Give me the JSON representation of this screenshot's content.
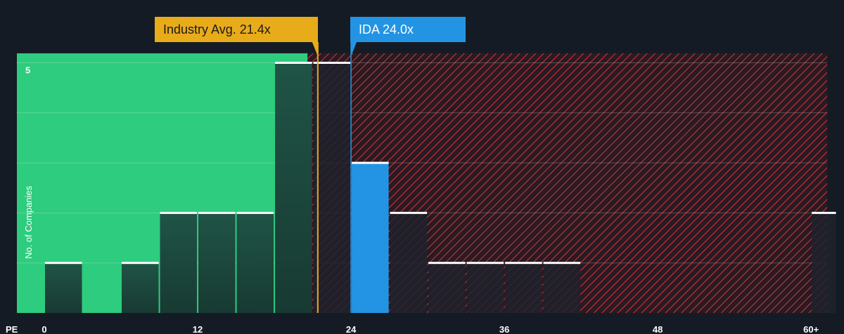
{
  "chart_data": {
    "type": "bar",
    "xlabel": "PE",
    "ylabel": "No. of Companies",
    "xlim": [
      0,
      62
    ],
    "ylim": [
      0,
      5
    ],
    "x_ticks": [
      {
        "value": 0,
        "label": "0"
      },
      {
        "value": 12,
        "label": "12"
      },
      {
        "value": 24,
        "label": "24"
      },
      {
        "value": 36,
        "label": "36"
      },
      {
        "value": 48,
        "label": "48"
      },
      {
        "value": 60,
        "label": "60+"
      }
    ],
    "y_ticks": [
      {
        "value": 5,
        "label": "5"
      }
    ],
    "bins": [
      {
        "start": 0,
        "end": 3,
        "count": 1
      },
      {
        "start": 6,
        "end": 9,
        "count": 1
      },
      {
        "start": 9,
        "end": 12,
        "count": 2
      },
      {
        "start": 12,
        "end": 15,
        "count": 2
      },
      {
        "start": 15,
        "end": 18,
        "count": 2
      },
      {
        "start": 18,
        "end": 21,
        "count": 5
      },
      {
        "start": 21,
        "end": 24,
        "count": 5
      },
      {
        "start": 24,
        "end": 27,
        "count": 3,
        "highlight": true
      },
      {
        "start": 27,
        "end": 30,
        "count": 2
      },
      {
        "start": 30,
        "end": 33,
        "count": 1
      },
      {
        "start": 33,
        "end": 36,
        "count": 1
      },
      {
        "start": 36,
        "end": 39,
        "count": 1
      },
      {
        "start": 39,
        "end": 42,
        "count": 1
      },
      {
        "start": 60,
        "end": 62,
        "count": 2
      }
    ],
    "fair_zone_end": 20.6,
    "industry_avg": {
      "value": 21.4,
      "label": "Industry Avg. 21.4x"
    },
    "company": {
      "value": 24.0,
      "label": "IDA 24.0x"
    },
    "colors": {
      "background": "#151b24",
      "fair_zone": "#2ecc7e",
      "overvalued_stripe": "#d6363e",
      "bar_dark": "#1f4a3e",
      "bar_highlight": "#2394e4",
      "bar_top": "#ffffff",
      "industry": "#e8ab1a",
      "company": "#2394e4"
    }
  }
}
